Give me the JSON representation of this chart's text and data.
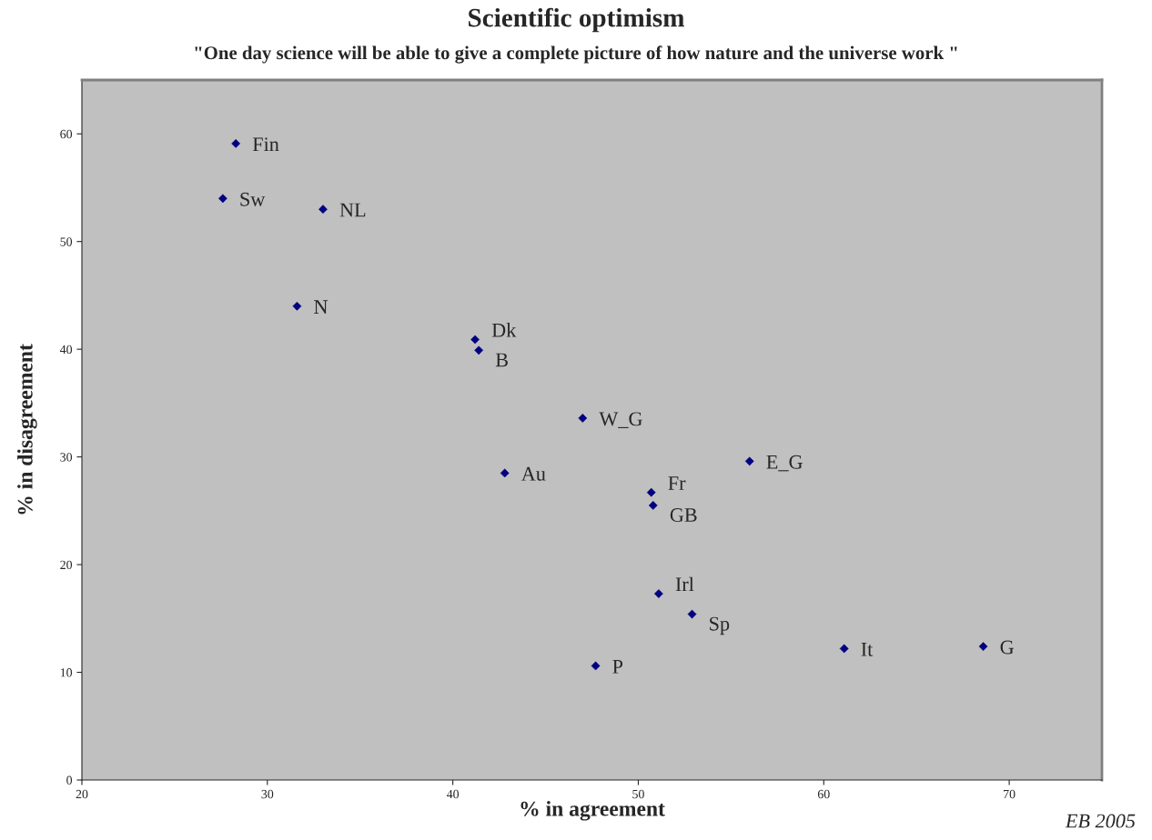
{
  "chart_data": {
    "type": "scatter",
    "title": "Scientific optimism",
    "subtitle": "\"One day science will be able to give a complete picture of how nature and the universe work \"",
    "xlabel": "% in agreement",
    "ylabel": "% in disagreement",
    "x": [
      28.3,
      27.6,
      33.0,
      31.6,
      41.2,
      41.4,
      47.0,
      42.8,
      56.0,
      50.7,
      50.8,
      51.1,
      52.9,
      47.7,
      61.1,
      68.6
    ],
    "series": [
      {
        "color": "#000080",
        "values": [
          59.1,
          54.0,
          53.0,
          44.0,
          40.9,
          39.9,
          33.6,
          28.5,
          29.6,
          26.7,
          25.5,
          17.3,
          15.4,
          10.6,
          12.2,
          12.4
        ]
      }
    ],
    "marker": "diamond",
    "grid": false,
    "legend": false,
    "xlim": [
      20,
      75
    ],
    "xticks": [
      20,
      30,
      40,
      50,
      60,
      70
    ],
    "ylim": [
      0,
      65
    ],
    "yticks": [
      0,
      10,
      20,
      30,
      40,
      50,
      60
    ],
    "annotations": [
      {
        "text": "Fin",
        "x": 28.3,
        "y": 59.1
      },
      {
        "text": "Sw",
        "x": 27.6,
        "y": 54.0
      },
      {
        "text": "NL",
        "x": 33.0,
        "y": 53.0
      },
      {
        "text": "N",
        "x": 31.6,
        "y": 44.0
      },
      {
        "text": "Dk",
        "x": 41.2,
        "y": 40.9
      },
      {
        "text": "B",
        "x": 41.4,
        "y": 39.9
      },
      {
        "text": "W_G",
        "x": 47.0,
        "y": 33.6
      },
      {
        "text": "Au",
        "x": 42.8,
        "y": 28.5
      },
      {
        "text": "E_G",
        "x": 56.0,
        "y": 29.6
      },
      {
        "text": "Fr",
        "x": 50.7,
        "y": 26.7
      },
      {
        "text": "GB",
        "x": 50.8,
        "y": 25.5
      },
      {
        "text": "Irl",
        "x": 51.1,
        "y": 17.3
      },
      {
        "text": "Sp",
        "x": 52.9,
        "y": 15.4
      },
      {
        "text": "P",
        "x": 47.7,
        "y": 10.6
      },
      {
        "text": "It",
        "x": 61.1,
        "y": 12.2
      },
      {
        "text": "G",
        "x": 68.6,
        "y": 12.4
      },
      "EB 2005"
    ]
  }
}
